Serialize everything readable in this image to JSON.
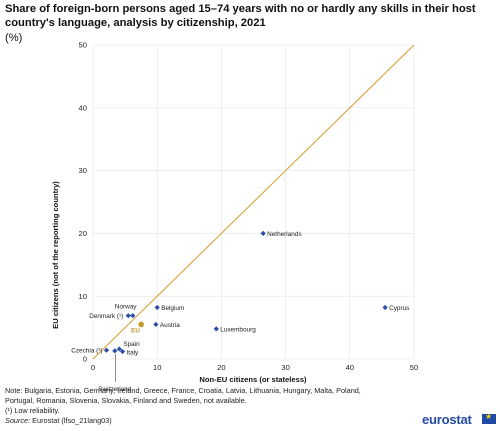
{
  "title": "Share of foreign-born persons aged 15–74 years with no or hardly any skills in their host country's language, analysis by citizenship, 2021",
  "unit": "(%)",
  "chart_data": {
    "type": "scatter",
    "xlabel": "Non-EU citizens (or stateless)",
    "ylabel": "EU citizens (not of the reporting country)",
    "xlim": [
      0,
      50
    ],
    "ylim": [
      0,
      50
    ],
    "xticks": [
      "0",
      "10",
      "20",
      "30",
      "40",
      "50"
    ],
    "yticks": [
      "0",
      "10",
      "20",
      "30",
      "40",
      "50"
    ],
    "grid": true,
    "reference_line": "y = x",
    "points": [
      {
        "label": "Netherlands",
        "x": 26.5,
        "y": 20.0
      },
      {
        "label": "Cyprus",
        "x": 45.5,
        "y": 8.2
      },
      {
        "label": "Belgium",
        "x": 10.0,
        "y": 8.2
      },
      {
        "label": "Norway",
        "x": 6.2,
        "y": 6.9
      },
      {
        "label": "Denmark (¹)",
        "x": 5.5,
        "y": 6.9
      },
      {
        "label": "Austria",
        "x": 9.8,
        "y": 5.5
      },
      {
        "label": "Luxembourg",
        "x": 19.2,
        "y": 4.8
      },
      {
        "label": "EU",
        "x": 7.5,
        "y": 5.5,
        "aggregate": true
      },
      {
        "label": "Spain",
        "x": 4.1,
        "y": 1.6
      },
      {
        "label": "Italy",
        "x": 4.6,
        "y": 1.2
      },
      {
        "label": "Czechia (¹)",
        "x": 2.1,
        "y": 1.4
      },
      {
        "label": "Switzerland",
        "x": 3.4,
        "y": 1.3
      }
    ],
    "colors": {
      "point": "#2a4dab",
      "eu_point": "#c49a2c",
      "eu_label": "#c49a2c",
      "diagonal": "#d6a23c",
      "grid": "#e4e4e4"
    }
  },
  "footer": {
    "note_line1": "Note: Bulgaria, Estonia, Germany, Ireland, Greece, France, Croatia, Latvia, Lithuania, Hungary, Malta, Poland,",
    "note_line2": "Portugal, Romania, Slovenia, Slovakia, Finland and Sweden, not available.",
    "footnote": "(¹) Low reliability.",
    "source_label": "Source:",
    "source_text": " Eurostat (lfso_21lang03)"
  },
  "logo": "eurostat"
}
